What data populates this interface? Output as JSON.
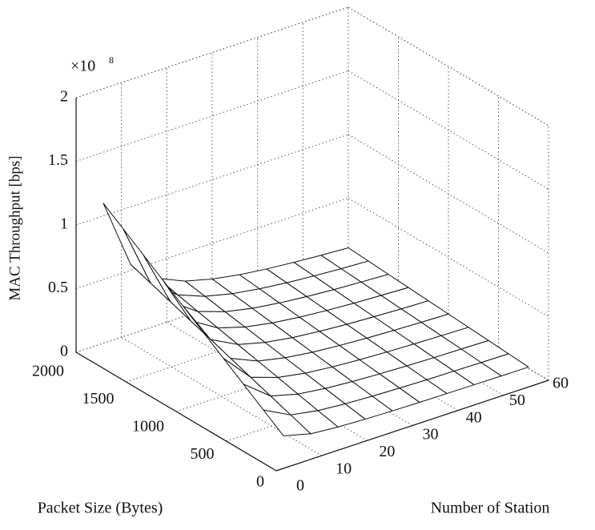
{
  "chart_data": {
    "type": "surface",
    "xlabel": "Number of Station",
    "ylabel": "Packet Size (Bytes)",
    "zlabel": "MAC Throughput [bps]",
    "zmultiplier": {
      "base": "×10",
      "exponent": "8"
    },
    "x": [
      6,
      12,
      18,
      24,
      30,
      36,
      42,
      48,
      54,
      60
    ],
    "y": [
      200,
      400,
      600,
      800,
      1000,
      1200,
      1400,
      1600,
      1800,
      2000
    ],
    "z": [
      [
        0.11,
        0.055,
        0.037,
        0.028,
        0.022,
        0.018,
        0.016,
        0.014,
        0.012,
        0.011
      ],
      [
        0.22,
        0.11,
        0.073,
        0.055,
        0.044,
        0.037,
        0.031,
        0.028,
        0.024,
        0.022
      ],
      [
        0.33,
        0.165,
        0.11,
        0.083,
        0.066,
        0.055,
        0.047,
        0.041,
        0.037,
        0.033
      ],
      [
        0.44,
        0.22,
        0.147,
        0.11,
        0.088,
        0.073,
        0.063,
        0.055,
        0.049,
        0.044
      ],
      [
        0.55,
        0.275,
        0.183,
        0.138,
        0.11,
        0.092,
        0.079,
        0.069,
        0.061,
        0.055
      ],
      [
        0.66,
        0.33,
        0.22,
        0.165,
        0.132,
        0.11,
        0.094,
        0.083,
        0.073,
        0.066
      ],
      [
        0.77,
        0.385,
        0.257,
        0.193,
        0.154,
        0.128,
        0.11,
        0.096,
        0.086,
        0.077
      ],
      [
        0.88,
        0.44,
        0.293,
        0.22,
        0.176,
        0.147,
        0.126,
        0.11,
        0.098,
        0.088
      ],
      [
        0.99,
        0.495,
        0.33,
        0.248,
        0.198,
        0.165,
        0.141,
        0.124,
        0.11,
        0.099
      ],
      [
        1.1,
        0.55,
        0.367,
        0.275,
        0.22,
        0.183,
        0.157,
        0.138,
        0.122,
        0.11
      ]
    ],
    "xlim": [
      0,
      60
    ],
    "xticks": [
      0,
      10,
      20,
      30,
      40,
      50,
      60
    ],
    "ylim": [
      0,
      2000
    ],
    "yticks": [
      0,
      500,
      1000,
      1500,
      2000
    ],
    "zlim": [
      0,
      2
    ],
    "zticks": [
      0,
      0.5,
      1,
      1.5,
      2
    ],
    "grid": true,
    "color": "#ffffff",
    "edgecolor": "#111111"
  }
}
